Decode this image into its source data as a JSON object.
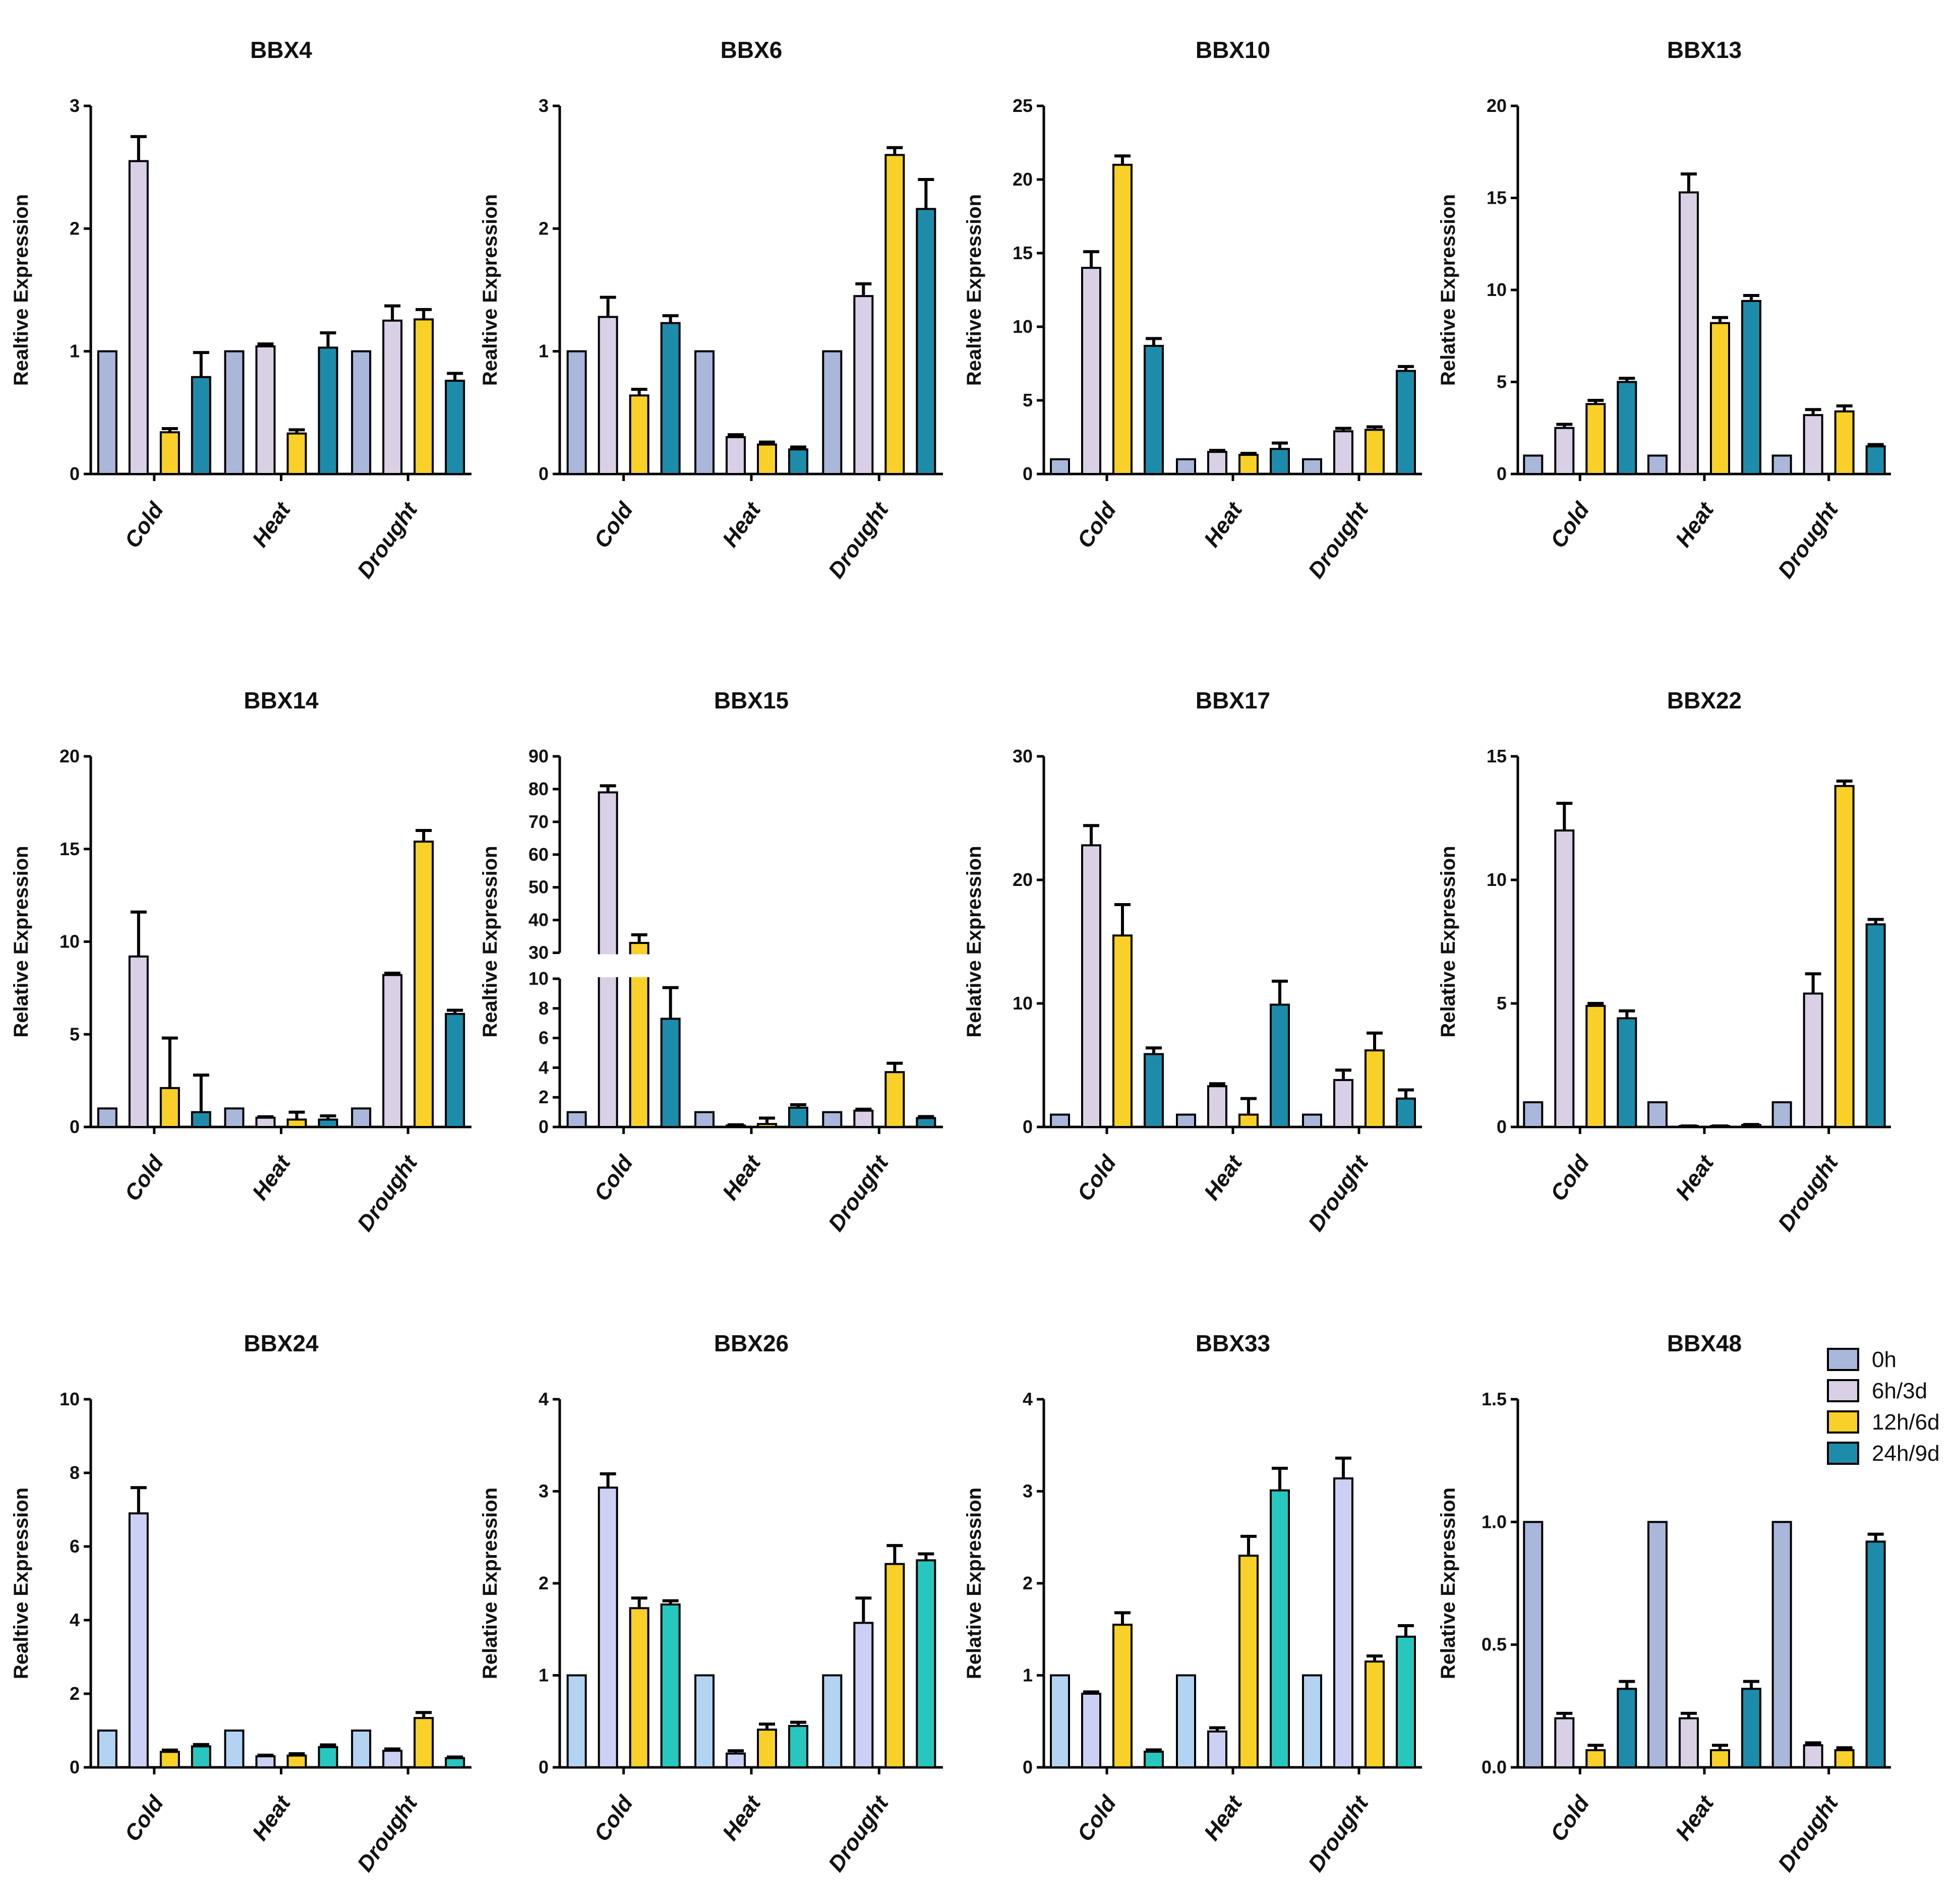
{
  "colors": {
    "c0": "#a9b7da",
    "c0_light": "#b3d3f3",
    "c1": "#d9d0e6",
    "c1_light": "#ccd0f4",
    "c2": "#f8d028",
    "c3": "#1d8cab",
    "c3_light": "#27c7bf"
  },
  "legend": {
    "position": "right of BBX48",
    "entries": [
      "0h",
      "6h/3d",
      "12h/6d",
      "24h/9d"
    ]
  },
  "chart_data": [
    {
      "type": "bar",
      "title": "BBX4",
      "ylabel": "Realtive Expression",
      "ylim": [
        0,
        3
      ],
      "yticks": [
        "0",
        "1",
        "2",
        "3"
      ],
      "categories": [
        "Cold",
        "Heat",
        "Drought"
      ],
      "series": [
        {
          "name": "0h",
          "values": [
            1,
            1,
            1
          ],
          "errors": [
            0,
            0,
            0
          ]
        },
        {
          "name": "6h/3d",
          "values": [
            2.55,
            1.04,
            1.25
          ],
          "errors": [
            0.2,
            0.02,
            0.12
          ]
        },
        {
          "name": "12h/6d",
          "values": [
            0.34,
            0.33,
            1.26
          ],
          "errors": [
            0.03,
            0.03,
            0.08
          ]
        },
        {
          "name": "24h/9d",
          "values": [
            0.79,
            1.03,
            0.76
          ],
          "errors": [
            0.2,
            0.12,
            0.06
          ]
        }
      ]
    },
    {
      "type": "bar",
      "title": "BBX6",
      "ylabel": "Realtive Expression",
      "ylim": [
        0,
        3
      ],
      "yticks": [
        "0",
        "1",
        "2",
        "3"
      ],
      "categories": [
        "Cold",
        "Heat",
        "Drought"
      ],
      "series": [
        {
          "name": "0h",
          "values": [
            1,
            1,
            1
          ],
          "errors": [
            0,
            0,
            0
          ]
        },
        {
          "name": "6h/3d",
          "values": [
            1.28,
            0.3,
            1.45
          ],
          "errors": [
            0.16,
            0.02,
            0.1
          ]
        },
        {
          "name": "12h/6d",
          "values": [
            0.64,
            0.24,
            2.6
          ],
          "errors": [
            0.05,
            0.02,
            0.06
          ]
        },
        {
          "name": "24h/9d",
          "values": [
            1.23,
            0.2,
            2.16
          ],
          "errors": [
            0.06,
            0.02,
            0.24
          ]
        }
      ]
    },
    {
      "type": "bar",
      "title": "BBX10",
      "ylabel": "Realtive Expression",
      "ylim": [
        0,
        25
      ],
      "yticks": [
        "0",
        "5",
        "10",
        "15",
        "20",
        "25"
      ],
      "categories": [
        "Cold",
        "Heat",
        "Drought"
      ],
      "series": [
        {
          "name": "0h",
          "values": [
            1,
            1,
            1
          ],
          "errors": [
            0,
            0,
            0
          ]
        },
        {
          "name": "6h/3d",
          "values": [
            14,
            1.5,
            2.9
          ],
          "errors": [
            1.1,
            0.1,
            0.2
          ]
        },
        {
          "name": "12h/6d",
          "values": [
            21,
            1.3,
            3
          ],
          "errors": [
            0.6,
            0.1,
            0.2
          ]
        },
        {
          "name": "24h/9d",
          "values": [
            8.7,
            1.7,
            7
          ],
          "errors": [
            0.5,
            0.4,
            0.3
          ]
        }
      ]
    },
    {
      "type": "bar",
      "title": "BBX13",
      "ylabel": "Relative Expression",
      "ylim": [
        0,
        20
      ],
      "yticks": [
        "0",
        "5",
        "10",
        "15",
        "20"
      ],
      "categories": [
        "Cold",
        "Heat",
        "Drought"
      ],
      "series": [
        {
          "name": "0h",
          "values": [
            1,
            1,
            1
          ],
          "errors": [
            0,
            0,
            0
          ]
        },
        {
          "name": "6h/3d",
          "values": [
            2.5,
            15.3,
            3.2
          ],
          "errors": [
            0.2,
            1,
            0.3
          ]
        },
        {
          "name": "12h/6d",
          "values": [
            3.8,
            8.2,
            3.4
          ],
          "errors": [
            0.2,
            0.3,
            0.3
          ]
        },
        {
          "name": "24h/9d",
          "values": [
            5,
            9.4,
            1.5
          ],
          "errors": [
            0.2,
            0.3,
            0.1
          ]
        }
      ]
    },
    {
      "type": "bar",
      "title": "BBX14",
      "ylabel": "Relative Expression",
      "ylim": [
        0,
        20
      ],
      "yticks": [
        "0",
        "5",
        "10",
        "15",
        "20"
      ],
      "categories": [
        "Cold",
        "Heat",
        "Drought"
      ],
      "series": [
        {
          "name": "0h",
          "values": [
            1,
            1,
            1
          ],
          "errors": [
            0,
            0,
            0
          ]
        },
        {
          "name": "6h/3d",
          "values": [
            9.2,
            0.5,
            8.2
          ],
          "errors": [
            2.4,
            0.05,
            0.1
          ]
        },
        {
          "name": "12h/6d",
          "values": [
            2.1,
            0.4,
            15.4
          ],
          "errors": [
            2.7,
            0.4,
            0.6
          ]
        },
        {
          "name": "24h/9d",
          "values": [
            0.8,
            0.4,
            6.1
          ],
          "errors": [
            2,
            0.2,
            0.2
          ]
        }
      ]
    },
    {
      "type": "bar",
      "title": "BBX15",
      "ylabel": "Realtive Expression",
      "broken_axis": true,
      "yticks_lower": [
        "0",
        "2",
        "4",
        "6",
        "8",
        "10"
      ],
      "yticks_upper": [
        "30",
        "40",
        "50",
        "60",
        "70",
        "80",
        "90"
      ],
      "categories": [
        "Cold",
        "Heat",
        "Drought"
      ],
      "series": [
        {
          "name": "0h",
          "values": [
            1,
            1,
            1
          ],
          "errors": [
            0,
            0,
            0
          ]
        },
        {
          "name": "6h/3d",
          "values": [
            79,
            0.1,
            1.1
          ],
          "errors": [
            2,
            0.05,
            0.1
          ]
        },
        {
          "name": "12h/6d",
          "values": [
            33,
            0.2,
            3.7
          ],
          "errors": [
            2.5,
            0.4,
            0.6
          ]
        },
        {
          "name": "24h/9d",
          "values": [
            7.3,
            1.3,
            0.6
          ],
          "errors": [
            2.1,
            0.2,
            0.1
          ]
        }
      ]
    },
    {
      "type": "bar",
      "title": "BBX17",
      "ylabel": "Relative Expression",
      "ylim": [
        0,
        30
      ],
      "yticks": [
        "0",
        "10",
        "20",
        "30"
      ],
      "categories": [
        "Cold",
        "Heat",
        "Drought"
      ],
      "series": [
        {
          "name": "0h",
          "values": [
            1,
            1,
            1
          ],
          "errors": [
            0,
            0,
            0
          ]
        },
        {
          "name": "6h/3d",
          "values": [
            22.8,
            3.3,
            3.8
          ],
          "errors": [
            1.6,
            0.2,
            0.8
          ]
        },
        {
          "name": "12h/6d",
          "values": [
            15.5,
            1,
            6.2
          ],
          "errors": [
            2.5,
            1.3,
            1.4
          ]
        },
        {
          "name": "24h/9d",
          "values": [
            5.9,
            9.9,
            2.3
          ],
          "errors": [
            0.5,
            1.9,
            0.7
          ]
        }
      ]
    },
    {
      "type": "bar",
      "title": "BBX22",
      "ylabel": "Relative Expression",
      "ylim": [
        0,
        15
      ],
      "yticks": [
        "0",
        "5",
        "10",
        "15"
      ],
      "categories": [
        "Cold",
        "Heat",
        "Drought"
      ],
      "series": [
        {
          "name": "0h",
          "values": [
            1,
            1,
            1
          ],
          "errors": [
            0,
            0,
            0
          ]
        },
        {
          "name": "6h/3d",
          "values": [
            12,
            0.02,
            5.4
          ],
          "errors": [
            1.1,
            0.02,
            0.8
          ]
        },
        {
          "name": "12h/6d",
          "values": [
            4.9,
            0.02,
            13.8
          ],
          "errors": [
            0.1,
            0.02,
            0.2
          ]
        },
        {
          "name": "24h/9d",
          "values": [
            4.4,
            0.08,
            8.2
          ],
          "errors": [
            0.3,
            0.02,
            0.2
          ]
        }
      ]
    },
    {
      "type": "bar",
      "title": "BBX24",
      "ylabel": "Realtive Expression",
      "ylim": [
        0,
        10
      ],
      "yticks": [
        "0",
        "2",
        "4",
        "6",
        "8",
        "10"
      ],
      "categories": [
        "Cold",
        "Heat",
        "Drought"
      ],
      "series": [
        {
          "name": "0h",
          "values": [
            1,
            1,
            1
          ],
          "errors": [
            0,
            0,
            0
          ]
        },
        {
          "name": "6h/3d",
          "values": [
            6.9,
            0.3,
            0.45
          ],
          "errors": [
            0.7,
            0.03,
            0.05
          ]
        },
        {
          "name": "12h/6d",
          "values": [
            0.42,
            0.32,
            1.34
          ],
          "errors": [
            0.05,
            0.05,
            0.15
          ]
        },
        {
          "name": "24h/9d",
          "values": [
            0.57,
            0.55,
            0.25
          ],
          "errors": [
            0.05,
            0.06,
            0.03
          ]
        }
      ]
    },
    {
      "type": "bar",
      "title": "BBX26",
      "ylabel": "Relative Expression",
      "ylim": [
        0,
        4
      ],
      "yticks": [
        "0",
        "1",
        "2",
        "3",
        "4"
      ],
      "categories": [
        "Cold",
        "Heat",
        "Drought"
      ],
      "series": [
        {
          "name": "0h",
          "values": [
            1,
            1,
            1
          ],
          "errors": [
            0,
            0,
            0
          ]
        },
        {
          "name": "6h/3d",
          "values": [
            3.04,
            0.15,
            1.57
          ],
          "errors": [
            0.15,
            0.03,
            0.27
          ]
        },
        {
          "name": "12h/6d",
          "values": [
            1.73,
            0.41,
            2.21
          ],
          "errors": [
            0.11,
            0.06,
            0.2
          ]
        },
        {
          "name": "24h/9d",
          "values": [
            1.77,
            0.45,
            2.25
          ],
          "errors": [
            0.04,
            0.04,
            0.07
          ]
        }
      ]
    },
    {
      "type": "bar",
      "title": "BBX33",
      "ylabel": "Relative Expression",
      "ylim": [
        0,
        4
      ],
      "yticks": [
        "0",
        "1",
        "2",
        "3",
        "4"
      ],
      "categories": [
        "Cold",
        "Heat",
        "Drought"
      ],
      "series": [
        {
          "name": "0h",
          "values": [
            1,
            1,
            1
          ],
          "errors": [
            0,
            0,
            0
          ]
        },
        {
          "name": "6h/3d",
          "values": [
            0.8,
            0.39,
            3.14
          ],
          "errors": [
            0.02,
            0.04,
            0.22
          ]
        },
        {
          "name": "12h/6d",
          "values": [
            1.55,
            2.3,
            1.15
          ],
          "errors": [
            0.13,
            0.21,
            0.06
          ]
        },
        {
          "name": "24h/9d",
          "values": [
            0.17,
            3.01,
            1.42
          ],
          "errors": [
            0.02,
            0.24,
            0.12
          ]
        }
      ]
    },
    {
      "type": "bar",
      "title": "BBX48",
      "ylabel": "Relative Expression",
      "ylim": [
        0,
        1.5
      ],
      "yticks": [
        "0.0",
        "0.5",
        "1.0",
        "1.5"
      ],
      "categories": [
        "Cold",
        "Heat",
        "Drought"
      ],
      "series": [
        {
          "name": "0h",
          "values": [
            1,
            1,
            1
          ],
          "errors": [
            0,
            0,
            0
          ]
        },
        {
          "name": "6h/3d",
          "values": [
            0.2,
            0.2,
            0.09
          ],
          "errors": [
            0.02,
            0.02,
            0.01
          ]
        },
        {
          "name": "12h/6d",
          "values": [
            0.07,
            0.07,
            0.07
          ],
          "errors": [
            0.02,
            0.02,
            0.01
          ]
        },
        {
          "name": "24h/9d",
          "values": [
            0.32,
            0.32,
            0.92
          ],
          "errors": [
            0.03,
            0.03,
            0.03
          ]
        }
      ]
    }
  ]
}
